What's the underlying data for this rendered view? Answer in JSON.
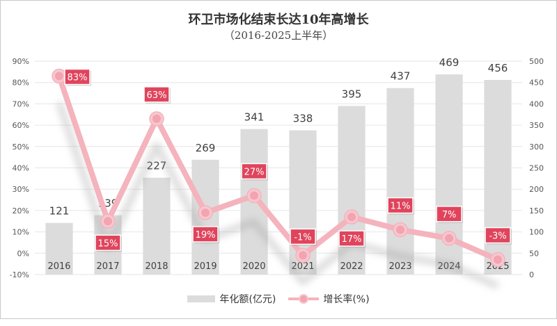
{
  "chart_data": {
    "type": "bar+line",
    "title": "环卫市场化结束长达10年高增长",
    "subtitle": "（2016-2025上半年）",
    "categories": [
      "2016",
      "2017",
      "2018",
      "2019",
      "2020",
      "2021",
      "2022",
      "2023",
      "2024",
      "2025"
    ],
    "series": [
      {
        "name": "年化额(亿元)",
        "type": "bar",
        "axis": "right",
        "values": [
          121,
          139,
          227,
          269,
          341,
          338,
          395,
          437,
          469,
          456
        ],
        "labels": [
          "121",
          "139",
          "227",
          "269",
          "341",
          "338",
          "395",
          "437",
          "469",
          "456"
        ]
      },
      {
        "name": "增长率(%)",
        "type": "line",
        "axis": "left",
        "values": [
          83,
          15,
          63,
          19,
          27,
          -1,
          17,
          11,
          7,
          -3
        ],
        "labels": [
          "83%",
          "15%",
          "63%",
          "19%",
          "27%",
          "-1%",
          "17%",
          "11%",
          "7%",
          "-3%"
        ]
      }
    ],
    "left_axis": {
      "ylim": [
        -10,
        90
      ],
      "ticks": [
        -10,
        0,
        10,
        20,
        30,
        40,
        50,
        60,
        70,
        80,
        90
      ],
      "tick_labels": [
        "-10%",
        "0%",
        "10%",
        "20%",
        "30%",
        "40%",
        "50%",
        "60%",
        "70%",
        "80%",
        "90%"
      ]
    },
    "right_axis": {
      "ylim": [
        0,
        500
      ],
      "ticks": [
        0,
        50,
        100,
        150,
        200,
        250,
        300,
        350,
        400,
        450,
        500
      ],
      "tick_labels": [
        "0",
        "50",
        "100",
        "150",
        "200",
        "250",
        "300",
        "350",
        "400",
        "450",
        "500"
      ]
    },
    "grid": true,
    "legend_position": "bottom",
    "colors": {
      "bar": "#dcdcdc",
      "line": "#f4b3bd",
      "marker": "#f2a4b0",
      "label_bg": "#e0445c",
      "label_text": "#ffffff"
    }
  },
  "legend": {
    "bar_label": "年化额(亿元)",
    "line_label": "增长率(%)"
  }
}
